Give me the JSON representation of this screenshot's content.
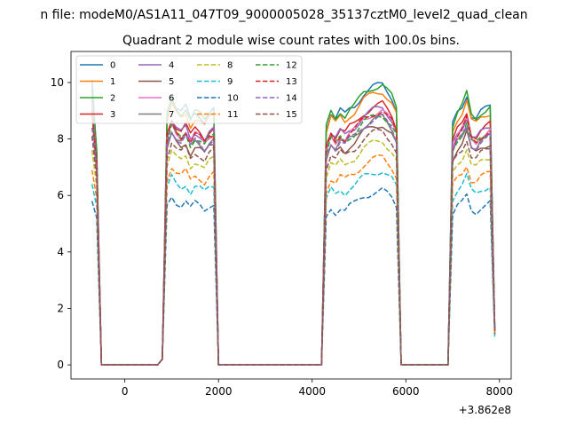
{
  "chart_data": {
    "type": "line",
    "suptitle": "n file: modeM0/AS1A11_047T09_9000005028_35137cztM0_level2_quad_clean",
    "title": "Quadrant 2 module wise count rates with 100.0s bins.",
    "xlabel": "",
    "ylabel": "",
    "x_offset_label": "+3.862e8",
    "xlim": [
      -1150,
      8250
    ],
    "ylim": [
      -0.5,
      11.1
    ],
    "xticks": [
      0,
      2000,
      4000,
      6000,
      8000
    ],
    "yticks": [
      0,
      2,
      4,
      6,
      8,
      10
    ],
    "x": [
      -700,
      -600,
      -500,
      700,
      800,
      900,
      1000,
      1100,
      1200,
      1300,
      1400,
      1500,
      1600,
      1700,
      1800,
      1900,
      2000,
      2100,
      4200,
      4300,
      4400,
      4500,
      4600,
      4700,
      4800,
      4900,
      5000,
      5100,
      5200,
      5300,
      5400,
      5500,
      5600,
      5700,
      5800,
      5900,
      6900,
      7000,
      7100,
      7200,
      7300,
      7400,
      7500,
      7600,
      7700,
      7800,
      7900
    ],
    "legend": {
      "position": "top-left",
      "columns": 4
    },
    "series": [
      {
        "name": "0",
        "color": "#1f77b4",
        "dash": "solid",
        "level": 8.8,
        "start": 10.1,
        "first": 7.5,
        "end": 1.3
      },
      {
        "name": "1",
        "color": "#ff7f0e",
        "dash": "solid",
        "level": 8.6,
        "start": 9.6,
        "first": 7.3,
        "end": 1.2
      },
      {
        "name": "2",
        "color": "#2ca02c",
        "dash": "solid",
        "level": 8.8,
        "start": 9.8,
        "first": 7.6,
        "end": 1.3
      },
      {
        "name": "3",
        "color": "#d62728",
        "dash": "solid",
        "level": 8.2,
        "start": 9.2,
        "first": 7.2,
        "end": 1.2
      },
      {
        "name": "4",
        "color": "#9467bd",
        "dash": "solid",
        "level": 8.1,
        "start": 9.4,
        "first": 7.1,
        "end": 1.2
      },
      {
        "name": "5",
        "color": "#8c564b",
        "dash": "solid",
        "level": 7.6,
        "start": 8.9,
        "first": 6.8,
        "end": 1.1
      },
      {
        "name": "6",
        "color": "#e377c2",
        "dash": "solid",
        "level": 8.0,
        "start": 9.2,
        "first": 7.0,
        "end": 1.2
      },
      {
        "name": "7",
        "color": "#7f7f7f",
        "dash": "solid",
        "level": 7.8,
        "start": 9.0,
        "first": 6.9,
        "end": 1.2
      },
      {
        "name": "8",
        "color": "#bcbd22",
        "dash": "dashed",
        "level": 7.1,
        "start": 7.6,
        "first": 6.3,
        "end": 1.1
      },
      {
        "name": "9",
        "color": "#17becf",
        "dash": "dashed",
        "level": 6.2,
        "start": 6.4,
        "first": 5.6,
        "end": 1.0
      },
      {
        "name": "10",
        "color": "#1f77b4",
        "dash": "dashed",
        "level": 5.6,
        "start": 5.8,
        "first": 5.2,
        "end": 1.0
      },
      {
        "name": "11",
        "color": "#ff7f0e",
        "dash": "dashed",
        "level": 6.6,
        "start": 6.9,
        "first": 5.9,
        "end": 1.1
      },
      {
        "name": "12",
        "color": "#2ca02c",
        "dash": "dashed",
        "level": 7.9,
        "start": 8.9,
        "first": 7.0,
        "end": 1.2
      },
      {
        "name": "13",
        "color": "#d62728",
        "dash": "dashed",
        "level": 8.0,
        "start": 9.0,
        "first": 7.1,
        "end": 1.2
      },
      {
        "name": "14",
        "color": "#9467bd",
        "dash": "dashed",
        "level": 7.8,
        "start": 8.4,
        "first": 6.9,
        "end": 1.2
      },
      {
        "name": "15",
        "color": "#8c564b",
        "dash": "dashed",
        "level": 7.4,
        "start": 8.1,
        "first": 6.6,
        "end": 1.1
      }
    ]
  }
}
